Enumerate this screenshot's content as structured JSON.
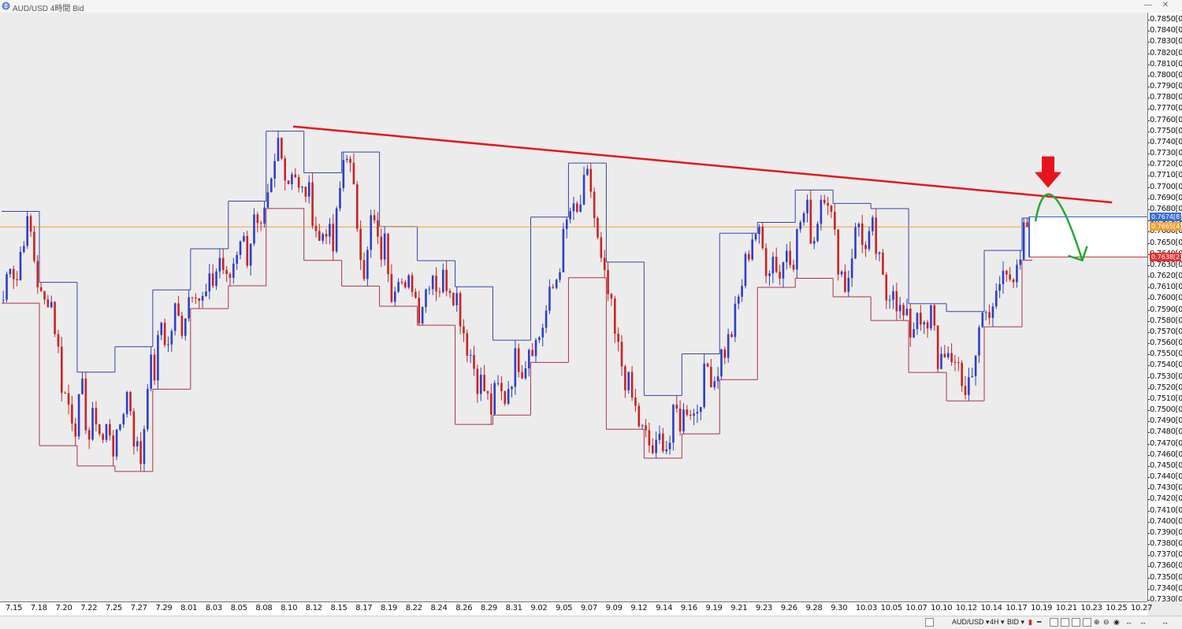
{
  "window": {
    "title": "AUD/USD 4時間 Bid",
    "minimize_glyph": "—",
    "close_glyph": "✕"
  },
  "colors": {
    "background": "#ececec",
    "bull_candle": "#2b3fcc",
    "bear_candle": "#cc2222",
    "trendline": "#e8141c",
    "arrow_down": "#e8141c",
    "forecast_arrow": "#22aa33",
    "current_price_line": "#f0a030",
    "range_box_top": "#3a5bd9",
    "range_box_bottom": "#cc3333"
  },
  "price_axis": {
    "labels": [
      "0.7850[0",
      "0.7840[0",
      "0.7830[0",
      "0.7820[0",
      "0.7810[0",
      "0.7800[0",
      "0.7790[0",
      "0.7780[0",
      "0.7770[0",
      "0.7760[0",
      "0.7750[0",
      "0.7740[0",
      "0.7730[0",
      "0.7720[0",
      "0.7710[0",
      "0.7700[0",
      "0.7690[0",
      "0.7680[0",
      "0.7670[0",
      "0.7660[0",
      "0.7650[0",
      "0.7640[0",
      "0.7630[0",
      "0.7620[0",
      "0.7610[0",
      "0.7600[0",
      "0.7590[0",
      "0.7580[0",
      "0.7570[0",
      "0.7560[0",
      "0.7550[0",
      "0.7540[0",
      "0.7530[0",
      "0.7520[0",
      "0.7510[0",
      "0.7500[0",
      "0.7490[0",
      "0.7480[0",
      "0.7470[0",
      "0.7460[0",
      "0.7450[0",
      "0.7440[0",
      "0.7430[0",
      "0.7420[0",
      "0.7410[0",
      "0.7400[0",
      "0.7390[0",
      "0.7380[0",
      "0.7370[0",
      "0.7360[0",
      "0.7350[0",
      "0.7340[0",
      "0.7330[0"
    ],
    "price_labels": [
      {
        "text": "0.7674[8]",
        "price": 0.7674,
        "color": "#3a6bd9"
      },
      {
        "text": "0.7665[4]",
        "price": 0.7665,
        "color": "#f0a030"
      },
      {
        "text": "0.7638[2]",
        "price": 0.7638,
        "color": "#e83030"
      }
    ]
  },
  "time_axis": {
    "labels": [
      "7.15",
      "7.18",
      "7.20",
      "7.22",
      "7.25",
      "7.27",
      "7.29",
      "8.01",
      "8.03",
      "8.05",
      "8.08",
      "8.10",
      "8.12",
      "8.15",
      "8.17",
      "8.19",
      "8.22",
      "8.24",
      "8.26",
      "8.29",
      "8.31",
      "9.02",
      "9.05",
      "9.07",
      "9.09",
      "9.12",
      "9.14",
      "9.16",
      "9.19",
      "9.21",
      "9.23",
      "9.26",
      "9.28",
      "9.30",
      "10.03",
      "10.05",
      "10.07",
      "10.10",
      "10.12",
      "10.14",
      "10.17",
      "10.19",
      "10.21",
      "10.23",
      "10.25",
      "10.27"
    ]
  },
  "statusbar": {
    "symbol": "AUD/USD ▾",
    "timeframe": "4H ▾",
    "side": "BID ▾"
  },
  "chart_data": {
    "type": "candlestick",
    "symbol": "AUD/USD",
    "timeframe": "4時間",
    "side": "Bid",
    "ylim": [
      0.733,
      0.7855
    ],
    "x_labels": [
      "7.15",
      "7.18",
      "7.20",
      "7.22",
      "7.25",
      "7.27",
      "7.29",
      "8.01",
      "8.03",
      "8.05",
      "8.08",
      "8.10",
      "8.12",
      "8.15",
      "8.17",
      "8.19",
      "8.22",
      "8.24",
      "8.26",
      "8.29",
      "8.31",
      "9.02",
      "9.05",
      "9.07",
      "9.09",
      "9.12",
      "9.14",
      "9.16",
      "9.19",
      "9.21",
      "9.23",
      "9.26",
      "9.28",
      "9.30",
      "10.03",
      "10.05",
      "10.07",
      "10.10",
      "10.12",
      "10.14",
      "10.17",
      "10.19",
      "10.21",
      "10.23",
      "10.25",
      "10.27"
    ],
    "price_path": [
      [
        0.76,
        0.764,
        0.7615,
        0.766,
        0.7665,
        0.7625,
        0.759,
        0.761,
        0.757,
        0.752,
        0.7505,
        0.749,
        0.7515,
        0.7475,
        0.75,
        0.747,
        0.749,
        0.746,
        0.75,
        0.752,
        0.747,
        0.7455,
        0.754
      ],
      [
        0.7535,
        0.758,
        0.7555,
        0.759,
        0.7575,
        0.76,
        0.762,
        0.7595,
        0.7605,
        0.762,
        0.764,
        0.761,
        0.7635,
        0.766,
        0.764,
        0.767,
        0.765,
        0.768,
        0.771,
        0.7755,
        0.77,
        0.7725,
        0.769
      ],
      [
        0.77,
        0.768,
        0.765,
        0.767,
        0.764,
        0.769,
        0.7745,
        0.77,
        0.766,
        0.762,
        0.768,
        0.764,
        0.765,
        0.761,
        0.763,
        0.76,
        0.762,
        0.759,
        0.7605,
        0.763,
        0.761,
        0.762,
        0.7615
      ],
      [
        0.76,
        0.757,
        0.755,
        0.753,
        0.752,
        0.75,
        0.752,
        0.751,
        0.753,
        0.755,
        0.754,
        0.7565,
        0.756,
        0.758,
        0.76,
        0.762,
        0.765,
        0.768,
        0.767,
        0.7695,
        0.771,
        0.766,
        0.762
      ],
      [
        0.76,
        0.756,
        0.754,
        0.752,
        0.75,
        0.748,
        0.747,
        0.746,
        0.748,
        0.7465,
        0.75,
        0.749,
        0.751,
        0.7495,
        0.752,
        0.754,
        0.753,
        0.755,
        0.756,
        0.758,
        0.761,
        0.764,
        0.7665
      ],
      [
        0.765,
        0.763,
        0.764,
        0.762,
        0.765,
        0.764,
        0.767,
        0.768,
        0.765,
        0.769,
        0.7705,
        0.766,
        0.763,
        0.761,
        0.765,
        0.767,
        0.764,
        0.766,
        0.763,
        0.76,
        0.762,
        0.759,
        0.758
      ],
      [
        0.757,
        0.76,
        0.756,
        0.759,
        0.754,
        0.756,
        0.753,
        0.755,
        0.751,
        0.754,
        0.756,
        0.759,
        0.758,
        0.762,
        0.764,
        0.76,
        0.762,
        0.766,
        0.7674
      ]
    ],
    "annotations": [
      {
        "type": "trendline",
        "from": [
          "8.10",
          0.7755
        ],
        "to": [
          "10.25",
          0.7687
        ],
        "color": "#e8141c"
      },
      {
        "type": "arrow-down",
        "at": [
          "10.19",
          0.77
        ],
        "color": "#e8141c"
      },
      {
        "type": "curved-arrow",
        "from": [
          "10.19",
          0.767
        ],
        "via": [
          "10.21",
          0.769
        ],
        "to": [
          "10.23",
          0.7635
        ],
        "color": "#22aa33"
      },
      {
        "type": "hline",
        "price": 0.7665,
        "color": "#f0a030"
      },
      {
        "type": "range-box",
        "top": 0.7674,
        "bottom": 0.7638,
        "from": "10.19"
      }
    ]
  }
}
